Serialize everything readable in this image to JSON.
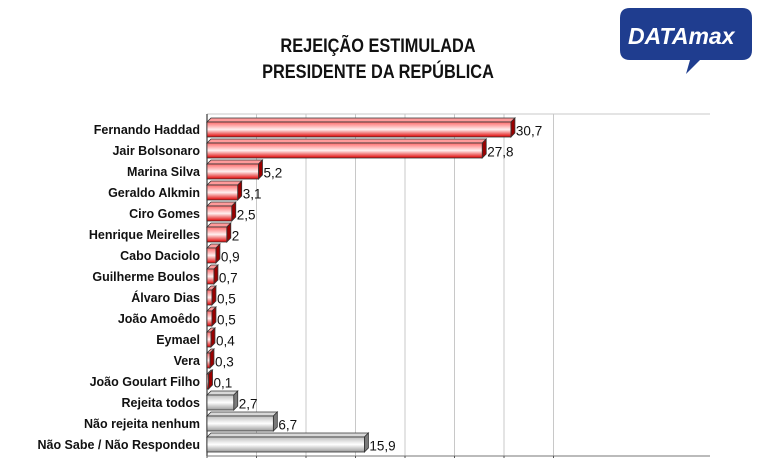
{
  "header": {
    "title_line1": "REJEIÇÃO ESTIMULADA",
    "title_line2": "PRESIDENTE DA REPÚBLICA",
    "logo_text_bold": "DATA",
    "logo_text_italic": "max"
  },
  "colors": {
    "red_dark": "#c00000",
    "red_light": "#ffe8e8",
    "gray_dark": "#8c8c8c",
    "gray_light": "#ffffff",
    "logo_bg": "#1f3d8f"
  },
  "chart_data": {
    "type": "bar",
    "orientation": "horizontal",
    "title": "REJEIÇÃO ESTIMULADA / PRESIDENTE DA REPÚBLICA",
    "xlim": [
      0,
      35
    ],
    "grid": true,
    "categories": [
      "Fernando Haddad",
      "Jair Bolsonaro",
      "Marina Silva",
      "Geraldo Alkmin",
      "Ciro Gomes",
      "Henrique Meirelles",
      "Cabo Daciolo",
      "Guilherme Boulos",
      "Álvaro Dias",
      "João Amoêdo",
      "Eymael",
      "Vera",
      "João Goulart Filho",
      "Rejeita todos",
      "Não rejeita nenhum",
      "Não Sabe / Não Respondeu"
    ],
    "values": [
      30.7,
      27.8,
      5.2,
      3.1,
      2.5,
      2,
      0.9,
      0.7,
      0.5,
      0.5,
      0.4,
      0.3,
      0.1,
      2.7,
      6.7,
      15.9
    ],
    "value_labels": [
      "30,7",
      "27,8",
      "5,2",
      "3,1",
      "2,5",
      "2",
      "0,9",
      "0,7",
      "0,5",
      "0,5",
      "0,4",
      "0,3",
      "0,1",
      "2,7",
      "6,7",
      "15,9"
    ],
    "bar_colors": [
      "red",
      "red",
      "red",
      "red",
      "red",
      "red",
      "red",
      "red",
      "red",
      "red",
      "red",
      "red",
      "red",
      "gray",
      "gray",
      "gray"
    ]
  }
}
